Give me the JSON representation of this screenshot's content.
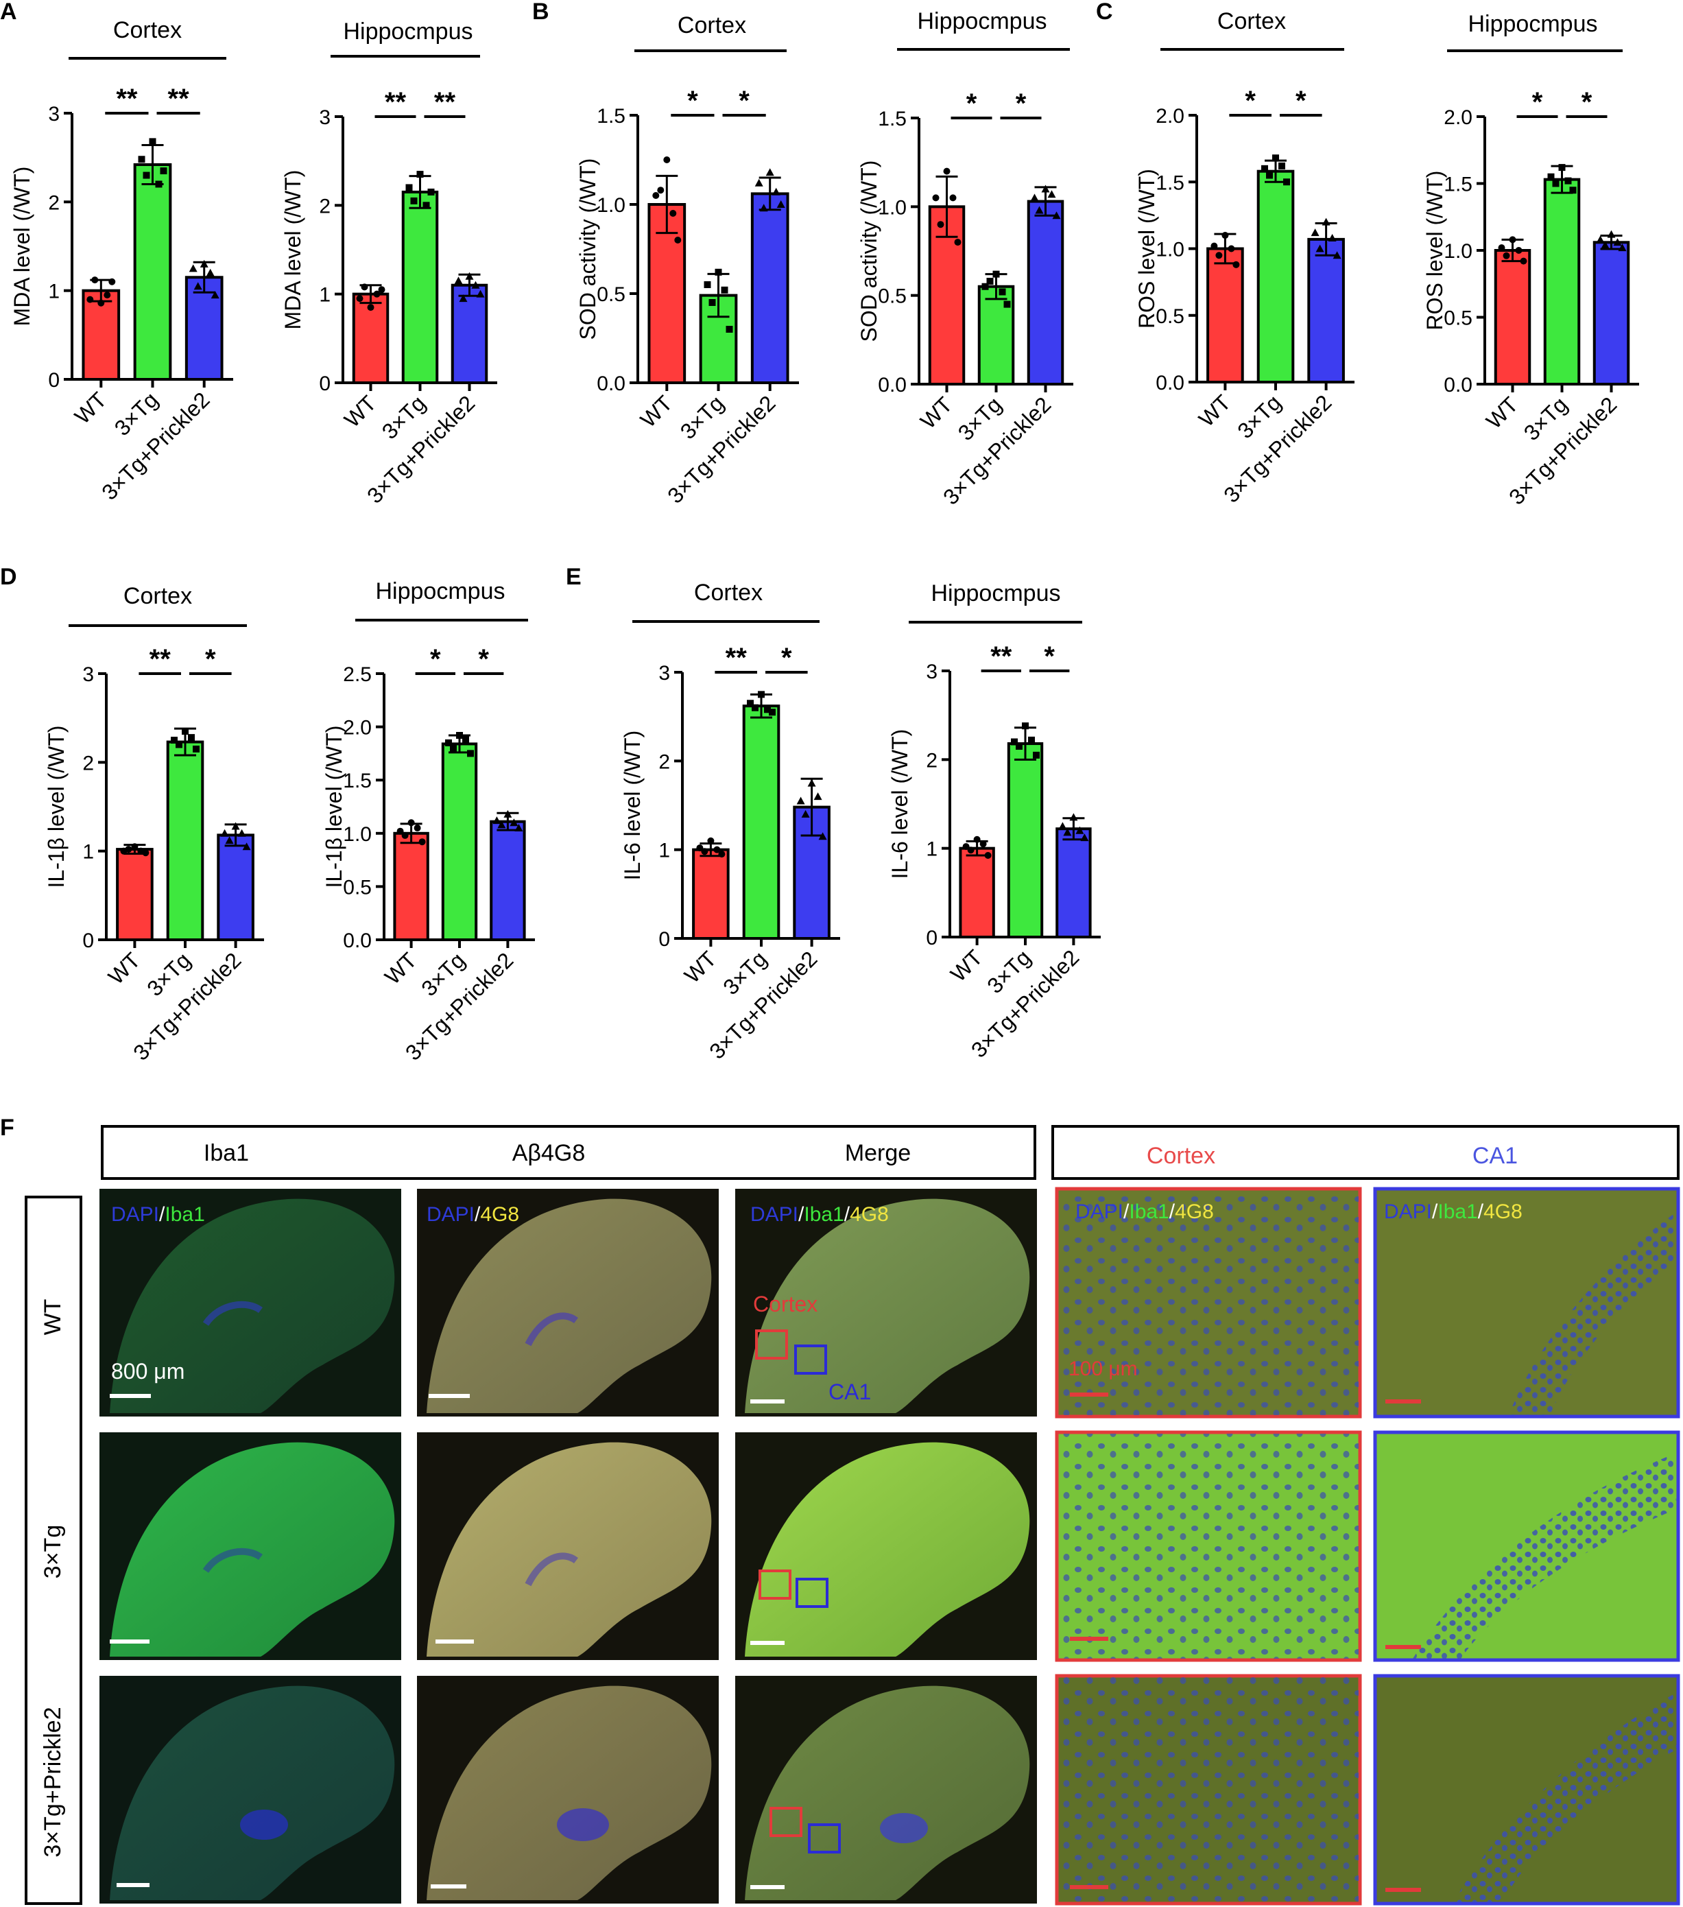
{
  "panels": [
    {
      "id": "A",
      "letter": "A"
    },
    {
      "id": "B",
      "letter": "B"
    },
    {
      "id": "C",
      "letter": "C"
    },
    {
      "id": "D",
      "letter": "D"
    },
    {
      "id": "E",
      "letter": "E"
    },
    {
      "id": "F",
      "letter": "F"
    }
  ],
  "colors": {
    "wt": "#ff3b3b",
    "tg": "#3ee83e",
    "tgp": "#3d3df0",
    "sig_red": "#e23b3b",
    "sig_blue": "#2b2bd6"
  },
  "chart_data": [
    {
      "panel": "A",
      "title": "Cortex",
      "type": "bar",
      "ylabel": "MDA level (/WT)",
      "ylim": [
        0,
        3
      ],
      "yticks": [
        "0",
        "1",
        "2",
        "3"
      ],
      "categories": [
        "WT",
        "3×Tg",
        "3×Tg+Prickle2"
      ],
      "values": [
        1.0,
        2.42,
        1.15
      ],
      "errors": [
        0.12,
        0.22,
        0.17
      ],
      "points": [
        [
          0.86,
          0.9,
          1.1,
          1.12,
          0.95
        ],
        [
          2.68,
          2.48,
          2.35,
          2.3,
          2.2
        ],
        [
          1.3,
          1.25,
          0.95,
          1.05,
          1.2
        ]
      ],
      "sig": [
        {
          "from": 0,
          "to": 1,
          "label": "**"
        },
        {
          "from": 1,
          "to": 2,
          "label": "**"
        }
      ]
    },
    {
      "panel": "A",
      "title": "Hippocmpus",
      "type": "bar",
      "ylabel": "MDA level (/WT)",
      "ylim": [
        0,
        3
      ],
      "yticks": [
        "0",
        "1",
        "2",
        "3"
      ],
      "categories": [
        "WT",
        "3×Tg",
        "3×Tg+Prickle2"
      ],
      "values": [
        1.0,
        2.15,
        1.1
      ],
      "errors": [
        0.1,
        0.18,
        0.12
      ],
      "points": [
        [
          0.85,
          0.95,
          1.05,
          1.08,
          1.0
        ],
        [
          2.35,
          2.2,
          2.15,
          2.05,
          2.0
        ],
        [
          1.2,
          1.15,
          1.0,
          0.95,
          1.1
        ]
      ],
      "sig": [
        {
          "from": 0,
          "to": 1,
          "label": "**"
        },
        {
          "from": 1,
          "to": 2,
          "label": "**"
        }
      ]
    },
    {
      "panel": "B",
      "title": "Cortex",
      "type": "bar",
      "ylabel": "SOD activity (/WT)",
      "ylim": [
        0,
        1.5
      ],
      "yticks": [
        "0.0",
        "0.5",
        "1.0",
        "1.5"
      ],
      "categories": [
        "WT",
        "3×Tg",
        "3×Tg+Prickle2"
      ],
      "values": [
        1.0,
        0.49,
        1.06
      ],
      "errors": [
        0.16,
        0.12,
        0.09
      ],
      "points": [
        [
          1.25,
          1.05,
          0.8,
          1.08,
          0.95
        ],
        [
          0.62,
          0.55,
          0.3,
          0.45,
          0.52
        ],
        [
          1.18,
          1.12,
          1.0,
          0.98,
          1.07
        ]
      ],
      "sig": [
        {
          "from": 0,
          "to": 1,
          "label": "*"
        },
        {
          "from": 1,
          "to": 2,
          "label": "*"
        }
      ]
    },
    {
      "panel": "B",
      "title": "Hippocmpus",
      "type": "bar",
      "ylabel": "SOD activity (/WT)",
      "ylim": [
        0,
        1.5
      ],
      "yticks": [
        "0.0",
        "0.5",
        "1.0",
        "1.5"
      ],
      "categories": [
        "WT",
        "3×Tg",
        "3×Tg+Prickle2"
      ],
      "values": [
        1.0,
        0.55,
        1.03
      ],
      "errors": [
        0.17,
        0.07,
        0.08
      ],
      "points": [
        [
          1.2,
          1.05,
          0.8,
          0.9,
          1.05
        ],
        [
          0.62,
          0.55,
          0.45,
          0.58,
          0.52
        ],
        [
          1.1,
          1.05,
          0.95,
          0.98,
          1.07
        ]
      ],
      "sig": [
        {
          "from": 0,
          "to": 1,
          "label": "*"
        },
        {
          "from": 1,
          "to": 2,
          "label": "*"
        }
      ]
    },
    {
      "panel": "C",
      "title": "Cortex",
      "type": "bar",
      "ylabel": "ROS level (/WT)",
      "ylim": [
        0,
        2.0
      ],
      "yticks": [
        "0.0",
        "0.5",
        "1.0",
        "1.5",
        "2.0"
      ],
      "categories": [
        "WT",
        "3×Tg",
        "3×Tg+Prickle2"
      ],
      "values": [
        1.0,
        1.58,
        1.07
      ],
      "errors": [
        0.11,
        0.08,
        0.12
      ],
      "points": [
        [
          1.1,
          1.02,
          0.88,
          0.95,
          1.0
        ],
        [
          1.68,
          1.6,
          1.5,
          1.55,
          1.62
        ],
        [
          1.2,
          1.12,
          0.95,
          1.0,
          1.08
        ]
      ],
      "sig": [
        {
          "from": 0,
          "to": 1,
          "label": "*"
        },
        {
          "from": 1,
          "to": 2,
          "label": "*"
        }
      ]
    },
    {
      "panel": "C",
      "title": "Hippocmpus",
      "type": "bar",
      "ylabel": "ROS level (/WT)",
      "ylim": [
        0,
        2.0
      ],
      "yticks": [
        "0.0",
        "0.5",
        "1.0",
        "1.5",
        "2.0"
      ],
      "categories": [
        "WT",
        "3×Tg",
        "3×Tg+Prickle2"
      ],
      "values": [
        1.0,
        1.53,
        1.06
      ],
      "errors": [
        0.08,
        0.1,
        0.05
      ],
      "points": [
        [
          1.08,
          1.02,
          0.92,
          0.96,
          1.0
        ],
        [
          1.62,
          1.55,
          1.45,
          1.5,
          1.52
        ],
        [
          1.12,
          1.08,
          1.02,
          1.04,
          1.06
        ]
      ],
      "sig": [
        {
          "from": 0,
          "to": 1,
          "label": "*"
        },
        {
          "from": 1,
          "to": 2,
          "label": "*"
        }
      ]
    },
    {
      "panel": "D",
      "title": "Cortex",
      "type": "bar",
      "ylabel": "IL-1β level (/WT)",
      "ylim": [
        0,
        3
      ],
      "yticks": [
        "0",
        "1",
        "2",
        "3"
      ],
      "categories": [
        "WT",
        "3×Tg",
        "3×Tg+Prickle2"
      ],
      "values": [
        1.02,
        2.23,
        1.18
      ],
      "errors": [
        0.05,
        0.15,
        0.12
      ],
      "points": [
        [
          1.05,
          1.0,
          0.98,
          1.02,
          1.0
        ],
        [
          2.35,
          2.25,
          2.15,
          2.2,
          2.28
        ],
        [
          1.28,
          1.2,
          1.05,
          1.12,
          1.2
        ]
      ],
      "sig": [
        {
          "from": 0,
          "to": 1,
          "label": "**"
        },
        {
          "from": 1,
          "to": 2,
          "label": "*"
        }
      ]
    },
    {
      "panel": "D",
      "title": "Hippocmpus",
      "type": "bar",
      "ylabel": "IL-1β level (/WT)",
      "ylim": [
        0,
        2.5
      ],
      "yticks": [
        "0.0",
        "0.5",
        "1.0",
        "1.5",
        "2.0",
        "2.5"
      ],
      "categories": [
        "WT",
        "3×Tg",
        "3×Tg+Prickle2"
      ],
      "values": [
        1.0,
        1.84,
        1.11
      ],
      "errors": [
        0.09,
        0.08,
        0.08
      ],
      "points": [
        [
          1.1,
          1.02,
          0.92,
          0.98,
          1.05
        ],
        [
          1.92,
          1.85,
          1.75,
          1.8,
          1.88
        ],
        [
          1.18,
          1.12,
          1.05,
          1.08,
          1.1
        ]
      ],
      "sig": [
        {
          "from": 0,
          "to": 1,
          "label": "*"
        },
        {
          "from": 1,
          "to": 2,
          "label": "*"
        }
      ]
    },
    {
      "panel": "E",
      "title": "Cortex",
      "type": "bar",
      "ylabel": "IL-6 level (/WT)",
      "ylim": [
        0,
        3
      ],
      "yticks": [
        "0",
        "1",
        "2",
        "3"
      ],
      "categories": [
        "WT",
        "3×Tg",
        "3×Tg+Prickle2"
      ],
      "values": [
        1.0,
        2.62,
        1.48
      ],
      "errors": [
        0.07,
        0.13,
        0.32
      ],
      "points": [
        [
          1.1,
          1.02,
          0.95,
          0.98,
          1.0
        ],
        [
          2.75,
          2.65,
          2.55,
          2.6,
          2.58
        ],
        [
          1.75,
          1.55,
          1.15,
          1.4,
          1.6
        ]
      ],
      "sig": [
        {
          "from": 0,
          "to": 1,
          "label": "**"
        },
        {
          "from": 1,
          "to": 2,
          "label": "*"
        }
      ]
    },
    {
      "panel": "E",
      "title": "Hippocmpus",
      "type": "bar",
      "ylabel": "IL-6 level (/WT)",
      "ylim": [
        0,
        3
      ],
      "yticks": [
        "0",
        "1",
        "2",
        "3"
      ],
      "categories": [
        "WT",
        "3×Tg",
        "3×Tg+Prickle2"
      ],
      "values": [
        1.0,
        2.18,
        1.22
      ],
      "errors": [
        0.08,
        0.18,
        0.12
      ],
      "points": [
        [
          1.1,
          1.02,
          0.92,
          0.98,
          1.05
        ],
        [
          2.38,
          2.2,
          2.05,
          2.15,
          2.22
        ],
        [
          1.35,
          1.25,
          1.12,
          1.18,
          1.2
        ]
      ],
      "sig": [
        {
          "from": 0,
          "to": 1,
          "label": "**"
        },
        {
          "from": 1,
          "to": 2,
          "label": "*"
        }
      ]
    }
  ],
  "micro": {
    "col_headers": [
      "Iba1",
      "Aβ4G8",
      "Merge"
    ],
    "region_headers": [
      "Cortex",
      "CA1"
    ],
    "row_labels": [
      "WT",
      "3×Tg",
      "3×Tg+Prickle2"
    ],
    "label_dapi": "DAPI",
    "label_iba1": "Iba1",
    "label_4g8": "4G8",
    "slash": "/",
    "scale_low": "800 μm",
    "scale_high": "100 μm",
    "roi_cortex": "Cortex",
    "roi_ca1": "CA1"
  }
}
